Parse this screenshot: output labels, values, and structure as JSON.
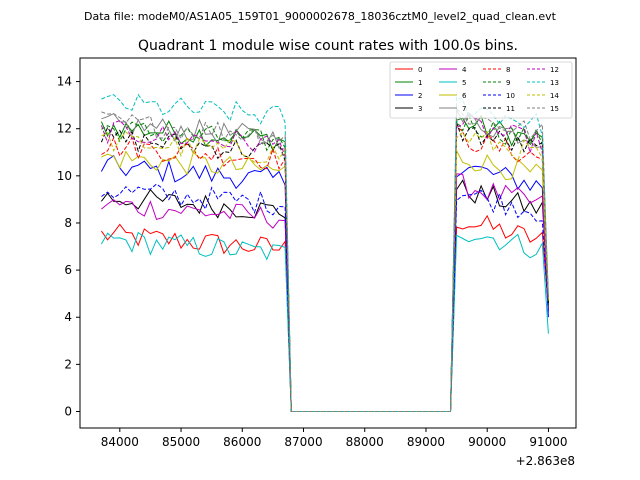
{
  "header": {
    "data_file": "Data file: modeM0/AS1A05_159T01_9000002678_18036cztM0_level2_quad_clean.evt"
  },
  "chart_data": {
    "type": "line",
    "title": "Quadrant 1 module wise count rates with 100.0s bins.",
    "xlabel": "",
    "ylabel": "",
    "x_offset_label": "+2.863e8",
    "xlim": [
      83350,
      91450
    ],
    "ylim": [
      -0.7,
      15
    ],
    "x_ticks": [
      84000,
      85000,
      86000,
      87000,
      88000,
      89000,
      90000,
      91000
    ],
    "x_tick_labels": [
      "84000",
      "85000",
      "86000",
      "87000",
      "88000",
      "89000",
      "90000",
      "91000"
    ],
    "y_ticks": [
      0,
      2,
      4,
      6,
      8,
      10,
      12,
      14
    ],
    "y_tick_labels": [
      "0",
      "2",
      "4",
      "6",
      "8",
      "10",
      "12",
      "14"
    ],
    "grid": false,
    "legend_position": "top-right",
    "segment1": {
      "start": 83700,
      "step": 100,
      "count": 31
    },
    "gap": {
      "x": [
        86800,
        86900,
        89300,
        89400
      ],
      "y": [
        0,
        0,
        0,
        0
      ]
    },
    "segment2": {
      "start": 89500,
      "step": 100,
      "count": 16
    },
    "series": [
      {
        "name": "0",
        "color": "#ff0000",
        "dash": "solid",
        "level1": 7.2,
        "level2": 7.7,
        "end": 4.4
      },
      {
        "name": "1",
        "color": "#008000",
        "dash": "solid",
        "level1": 11.8,
        "level2": 11.9,
        "end": 4.4
      },
      {
        "name": "2",
        "color": "#0000ff",
        "dash": "solid",
        "level1": 10.1,
        "level2": 10.0,
        "end": 4.0
      },
      {
        "name": "3",
        "color": "#000000",
        "dash": "solid",
        "level1": 8.8,
        "level2": 9.0,
        "end": 4.6
      },
      {
        "name": "4",
        "color": "#bf00bf",
        "dash": "solid",
        "level1": 8.5,
        "level2": 9.2,
        "end": 4.3
      },
      {
        "name": "5",
        "color": "#00bfbf",
        "dash": "solid",
        "level1": 7.0,
        "level2": 7.3,
        "end": 3.3
      },
      {
        "name": "6",
        "color": "#bfbf00",
        "dash": "solid",
        "level1": 10.5,
        "level2": 10.4,
        "end": 4.7
      },
      {
        "name": "7",
        "color": "#808080",
        "dash": "solid",
        "level1": 11.9,
        "level2": 12.0,
        "end": 4.8
      },
      {
        "name": "8",
        "color": "#ff0000",
        "dash": "dashed",
        "level1": 11.0,
        "level2": 11.2,
        "end": 4.6
      },
      {
        "name": "9",
        "color": "#008000",
        "dash": "dashed",
        "level1": 11.7,
        "level2": 11.9,
        "end": 4.5
      },
      {
        "name": "10",
        "color": "#0000ff",
        "dash": "dashed",
        "level1": 9.1,
        "level2": 8.9,
        "end": 4.2
      },
      {
        "name": "11",
        "color": "#000000",
        "dash": "dashed",
        "level1": 11.3,
        "level2": 11.5,
        "end": 4.6
      },
      {
        "name": "12",
        "color": "#bf00bf",
        "dash": "dashed",
        "level1": 11.6,
        "level2": 11.8,
        "end": 4.7
      },
      {
        "name": "13",
        "color": "#00bfbf",
        "dash": "dashed",
        "level1": 12.8,
        "level2": 12.6,
        "end": 4.9
      },
      {
        "name": "14",
        "color": "#bfbf00",
        "dash": "dashed",
        "level1": 11.2,
        "level2": 11.3,
        "end": 4.7
      },
      {
        "name": "15",
        "color": "#808080",
        "dash": "dashed",
        "level1": 12.0,
        "level2": 12.2,
        "end": 4.8
      }
    ]
  }
}
